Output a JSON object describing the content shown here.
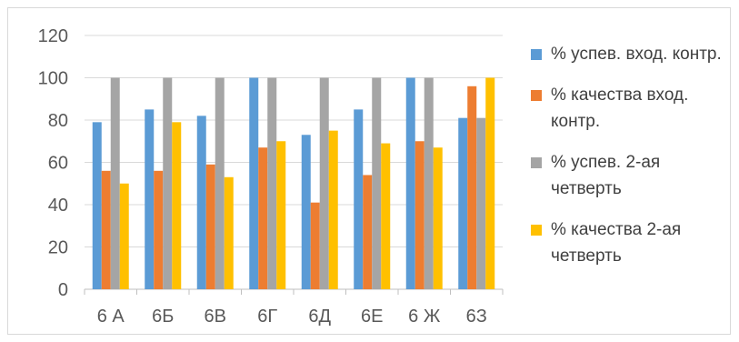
{
  "chart_data": {
    "type": "bar",
    "categories": [
      "6 А",
      "6Б",
      "6В",
      "6Г",
      "6Д",
      "6Е",
      "6 Ж",
      "6З"
    ],
    "series": [
      {
        "name": "% успев. вход. контр.",
        "color": "#5b9bd5",
        "values": [
          79,
          85,
          82,
          100,
          73,
          85,
          100,
          81
        ]
      },
      {
        "name": "% качества вход. контр.",
        "color": "#ed7d31",
        "values": [
          56,
          56,
          59,
          67,
          41,
          54,
          70,
          96
        ]
      },
      {
        "name": "% успев. 2-ая четверть",
        "color": "#a5a5a5",
        "values": [
          100,
          100,
          100,
          100,
          100,
          100,
          100,
          81
        ]
      },
      {
        "name": "% качества 2-ая четверть",
        "color": "#ffc000",
        "values": [
          50,
          79,
          53,
          70,
          75,
          69,
          67,
          100
        ]
      }
    ],
    "yticks": [
      0,
      20,
      40,
      60,
      80,
      100,
      120
    ],
    "ylim": [
      0,
      120
    ],
    "grid": true,
    "legend_position": "right"
  }
}
